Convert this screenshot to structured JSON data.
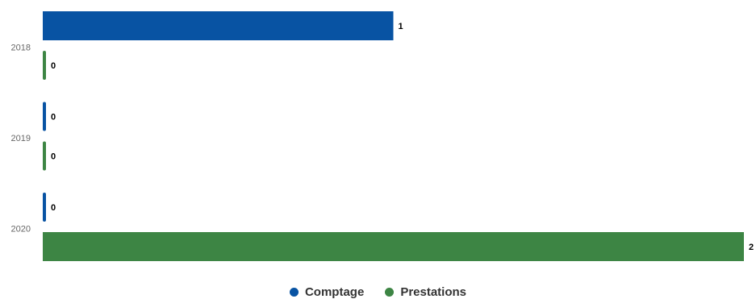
{
  "chart_data": {
    "type": "bar",
    "orientation": "horizontal",
    "categories": [
      "2018",
      "2019",
      "2020"
    ],
    "series": [
      {
        "name": "Comptage",
        "color": "#0853a3",
        "values": [
          1,
          0,
          0
        ]
      },
      {
        "name": "Prestations",
        "color": "#3d8544",
        "values": [
          0,
          0,
          2
        ]
      }
    ],
    "xlim": [
      0,
      2
    ],
    "grid": false,
    "data_labels": true,
    "legend_position": "bottom-center"
  }
}
